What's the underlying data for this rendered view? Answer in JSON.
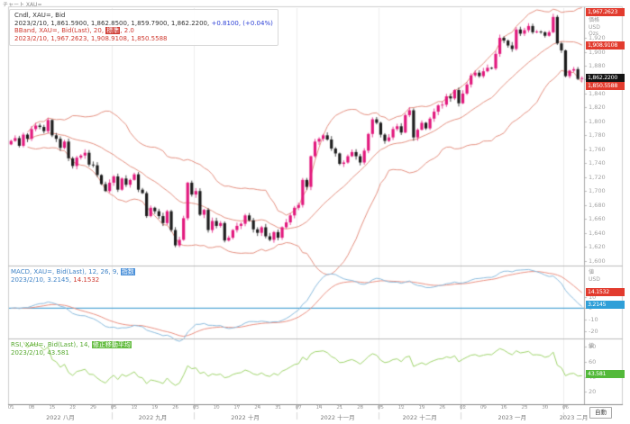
{
  "window": {
    "title": "チャート XAU="
  },
  "colors": {
    "candle_up": "#e2187d",
    "candle_down": "#1c1c1c",
    "bband": "#e49080",
    "macd_line": "#8abbdd",
    "macd_signal": "#ea8f80",
    "macd_zero": "#58a9d7",
    "rsi_line": "#9ed36a",
    "badge_red": "#e23b2e",
    "badge_black": "#141414",
    "badge_blue": "#2f9fd8",
    "badge_green": "#53b93a"
  },
  "main_panel": {
    "legend": {
      "line1": "Cndl, XAU=, Bid",
      "line2_values": "2023/2/10, 1,861.5900, 1,862.8500, 1,859.7900, 1,862.2200, ",
      "line2_change": "+0.8100, (+0.04%)",
      "line3_prefix": "BBand, XAU=, Bid(Last), 20, ",
      "line3_mode": "標準",
      "line3_suffix": ", 2.0",
      "line4": "2023/2/10, 1,967.2623, 1,908.9108, 1,850.5588"
    },
    "axis_title": [
      "価格",
      "USD",
      "Ozs"
    ],
    "badges": [
      {
        "label": "1,967.2623",
        "value": 1967.2623,
        "color": "badge_red"
      },
      {
        "label": "1,908.9108",
        "value": 1908.9108,
        "color": "badge_red"
      },
      {
        "label": "1,862.2200",
        "value": 1862.22,
        "color": "badge_black"
      },
      {
        "label": "1,850.5588",
        "value": 1850.5588,
        "color": "badge_red"
      }
    ],
    "ticks": [
      {
        "label": "1,920",
        "value": 1920
      },
      {
        "label": "1,900",
        "value": 1900
      },
      {
        "label": "1,880",
        "value": 1880
      },
      {
        "label": "1,860",
        "value": 1860
      },
      {
        "label": "1,840",
        "value": 1840
      },
      {
        "label": "1,820",
        "value": 1820
      },
      {
        "label": "1,800",
        "value": 1800
      },
      {
        "label": "1,780",
        "value": 1780
      },
      {
        "label": "1,760",
        "value": 1760
      },
      {
        "label": "1,740",
        "value": 1740
      },
      {
        "label": "1,720",
        "value": 1720
      },
      {
        "label": "1,700",
        "value": 1700
      },
      {
        "label": "1,680",
        "value": 1680
      },
      {
        "label": "1,660",
        "value": 1660
      },
      {
        "label": "1,640",
        "value": 1640
      },
      {
        "label": "1,620",
        "value": 1620
      },
      {
        "label": "1,600",
        "value": 1600
      }
    ]
  },
  "macd_panel": {
    "legend": {
      "line1_prefix": "MACD, XAU=, Bid(Last), 12, 26, 9, ",
      "line1_mode": "指数",
      "line2_blue": "2023/2/10, 3.2145, ",
      "line2_red": "14.1532"
    },
    "axis_title": [
      "値",
      "USD"
    ],
    "badges": [
      {
        "label": "14.1532",
        "value": 14.1532,
        "color": "badge_red"
      },
      {
        "label": "3.2145",
        "value": 3.2145,
        "color": "badge_blue"
      }
    ],
    "ticks": [
      {
        "label": "10",
        "value": 10
      },
      {
        "label": "0",
        "value": 0
      },
      {
        "label": "-10",
        "value": -10
      },
      {
        "label": "-20",
        "value": -20
      }
    ]
  },
  "rsi_panel": {
    "legend": {
      "line1_prefix": "RSI, XAU=, Bid(Last), 14, ",
      "line1_mode": "修正移動平均",
      "line2": "2023/2/10, 43.581"
    },
    "axis_title": [
      "値"
    ],
    "badges": [
      {
        "label": "43.581",
        "value": 43.581,
        "color": "badge_green"
      }
    ],
    "ticks": [
      {
        "label": "80",
        "value": 80
      },
      {
        "label": "60",
        "value": 60
      },
      {
        "label": "40",
        "value": 40
      },
      {
        "label": "20",
        "value": 20
      }
    ]
  },
  "x_axis": {
    "weeks": [
      "01",
      "08",
      "15",
      "22",
      "29",
      "05",
      "12",
      "19",
      "26",
      "03",
      "10",
      "17",
      "24",
      "31",
      "07",
      "14",
      "21",
      "28",
      "05",
      "12",
      "19",
      "26",
      "02",
      "09",
      "16",
      "23",
      "30",
      "06"
    ],
    "months": [
      {
        "label": "2022 八月",
        "weeks": 5
      },
      {
        "label": "2022 九月",
        "weeks": 4
      },
      {
        "label": "2022 十月",
        "weeks": 5
      },
      {
        "label": "2022 十一月",
        "weeks": 4
      },
      {
        "label": "2022 十二月",
        "weeks": 4
      },
      {
        "label": "2023 一月",
        "weeks": 5
      },
      {
        "label": "2023 二月",
        "weeks": 1
      }
    ],
    "auto_label": "自動"
  },
  "chart_data": {
    "type": "candlestick",
    "instrument": "XAU=",
    "date_range": "2022/8/1 - 2023/2/10",
    "last_bar": {
      "date": "2023/2/10",
      "open": 1861.59,
      "high": 1862.85,
      "low": 1859.79,
      "close": 1862.22,
      "change": 0.81,
      "change_pct": "+0.04%"
    },
    "bollinger": {
      "period": 20,
      "stdev": 2.0,
      "upper": 1967.2623,
      "middle": 1908.9108,
      "lower": 1850.5588
    },
    "macd": {
      "fast": 12,
      "slow": 26,
      "signal_period": 9,
      "macd_value": 3.2145,
      "signal_value": 14.1532
    },
    "rsi": {
      "period": 14,
      "value": 43.581
    },
    "y_axis": {
      "main_domain": [
        1593,
        1964
      ],
      "macd_domain": [
        -26,
        36
      ],
      "rsi_domain": [
        5,
        90
      ]
    },
    "closes": [
      1772,
      1776,
      1765,
      1781,
      1775,
      1789,
      1794,
      1792,
      1786,
      1802,
      1780,
      1775,
      1762,
      1771,
      1747,
      1736,
      1748,
      1751,
      1755,
      1738,
      1737,
      1723,
      1710,
      1700,
      1712,
      1721,
      1702,
      1718,
      1709,
      1716,
      1724,
      1702,
      1697,
      1664,
      1676,
      1671,
      1664,
      1654,
      1671,
      1644,
      1622,
      1630,
      1661,
      1712,
      1695,
      1700,
      1666,
      1673,
      1644,
      1657,
      1650,
      1654,
      1629,
      1633,
      1644,
      1650,
      1653,
      1665,
      1658,
      1645,
      1640,
      1648,
      1635,
      1630,
      1641,
      1633,
      1648,
      1655,
      1665,
      1676,
      1680,
      1716,
      1706,
      1750,
      1771,
      1775,
      1780,
      1774,
      1761,
      1754,
      1739,
      1741,
      1750,
      1756,
      1750,
      1741,
      1758,
      1782,
      1803,
      1798,
      1781,
      1772,
      1777,
      1789,
      1793,
      1784,
      1809,
      1816,
      1777,
      1788,
      1798,
      1790,
      1804,
      1814,
      1823,
      1824,
      1836,
      1833,
      1845,
      1826,
      1840,
      1853,
      1866,
      1870,
      1865,
      1872,
      1877,
      1876,
      1897,
      1920,
      1916,
      1909,
      1904,
      1932,
      1926,
      1931,
      1937,
      1928,
      1929,
      1928,
      1923,
      1928,
      1950,
      1912,
      1902,
      1865,
      1873,
      1875,
      1861,
      1862.22
    ]
  }
}
